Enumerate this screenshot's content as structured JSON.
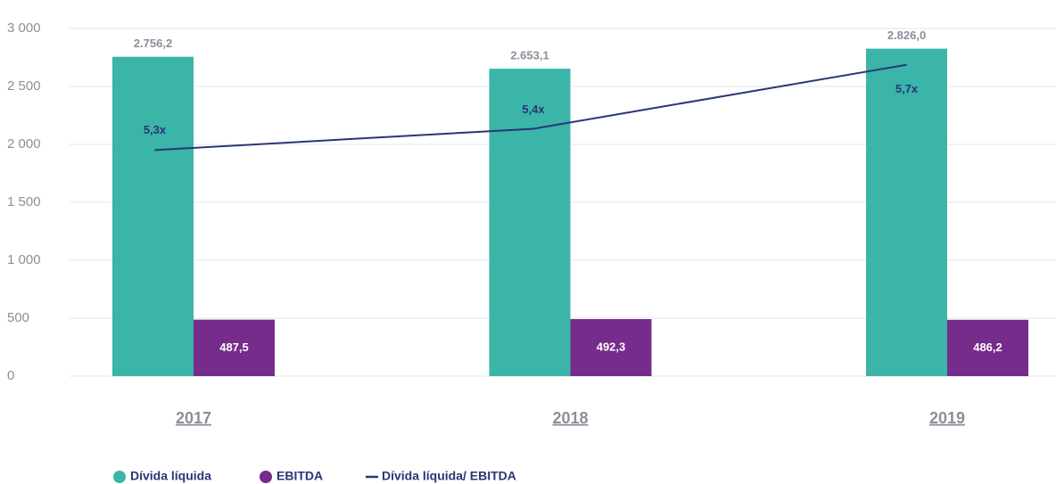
{
  "chart_data": {
    "type": "bar",
    "categories": [
      "2017",
      "2018",
      "2019"
    ],
    "series": [
      {
        "name": "Dívida líquida",
        "color": "#3ab5a8",
        "values": [
          2756.2,
          2653.1,
          2826.0
        ],
        "value_labels": [
          "2.756,2",
          "2.653,1",
          "2.826,0"
        ]
      },
      {
        "name": "EBITDA",
        "color": "#752c8a",
        "values": [
          487.5,
          492.3,
          486.2
        ],
        "value_labels": [
          "487,5",
          "492,3",
          "486,2"
        ]
      },
      {
        "name": "Dívida líquida/ EBITDA",
        "color": "#2a3577",
        "type": "line",
        "axis": "y2",
        "values": [
          5.3,
          5.4,
          5.7
        ],
        "value_labels": [
          "5,3x",
          "5,4x",
          "5,7x"
        ]
      }
    ],
    "ylim": [
      0,
      3000
    ],
    "yticks": [
      0,
      500,
      {
        "value": 1000,
        "label": "1 000"
      },
      {
        "value": 1500,
        "label": "1 500"
      },
      {
        "value": 2000,
        "label": "2 000"
      },
      {
        "value": 2500,
        "label": "2 500"
      },
      {
        "value": 3000,
        "label": "3 000"
      }
    ],
    "y2lim": [
      4.24,
      5.87
    ],
    "grid": true,
    "legend": "bottom-left"
  }
}
